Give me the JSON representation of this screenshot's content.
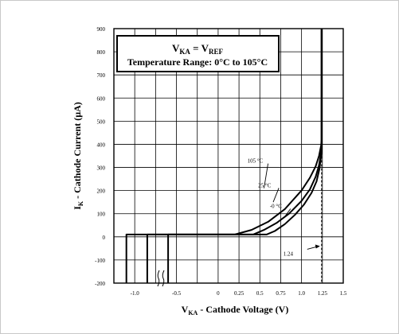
{
  "chart_data": {
    "type": "line",
    "title_line1_main": "V",
    "title_line1_sub": "KA",
    "title_line1_eq": " = V",
    "title_line1_sub2": "REF",
    "title_line2": "Temperature Range: 0°C to 105°C",
    "xlabel_main": "V",
    "xlabel_sub": "KA",
    "xlabel_rest": " - Cathode Voltage (V)",
    "ylabel_main": "I",
    "ylabel_sub": "K",
    "ylabel_rest": " - Cathode Current (µA)",
    "xlim": [
      -1.25,
      1.5
    ],
    "ylim": [
      -200,
      900
    ],
    "grid": true,
    "x_ticks": [
      {
        "v": -1.0,
        "label": "-1.0"
      },
      {
        "v": -0.5,
        "label": "-0.5"
      },
      {
        "v": 0,
        "label": "0"
      },
      {
        "v": 0.25,
        "label": "0.25"
      },
      {
        "v": 0.5,
        "label": "0.5"
      },
      {
        "v": 0.75,
        "label": "0.75"
      },
      {
        "v": 1.0,
        "label": "1.0"
      },
      {
        "v": 1.25,
        "label": "1.25"
      },
      {
        "v": 1.5,
        "label": "1.5"
      }
    ],
    "y_ticks": [
      {
        "v": -200,
        "label": "-200"
      },
      {
        "v": -100,
        "label": "-100"
      },
      {
        "v": 0,
        "label": "0"
      },
      {
        "v": 100,
        "label": "100"
      },
      {
        "v": 200,
        "label": "200"
      },
      {
        "v": 300,
        "label": "300"
      },
      {
        "v": 400,
        "label": "400"
      },
      {
        "v": 500,
        "label": "500"
      },
      {
        "v": 600,
        "label": "600"
      },
      {
        "v": 700,
        "label": "700"
      },
      {
        "v": 800,
        "label": "800"
      },
      {
        "v": 900,
        "label": "900"
      }
    ],
    "series": [
      {
        "name": "105 °C",
        "points": [
          [
            -1.1,
            -200
          ],
          [
            -1.1,
            10
          ],
          [
            0.2,
            10
          ],
          [
            0.4,
            30
          ],
          [
            0.6,
            65
          ],
          [
            0.8,
            120
          ],
          [
            1.0,
            200
          ],
          [
            1.1,
            255
          ],
          [
            1.17,
            305
          ],
          [
            1.21,
            350
          ],
          [
            1.235,
            395
          ],
          [
            1.24,
            420
          ],
          [
            1.24,
            900
          ]
        ]
      },
      {
        "name": "25 °C",
        "points": [
          [
            -0.85,
            -200
          ],
          [
            -0.85,
            10
          ],
          [
            0.42,
            10
          ],
          [
            0.55,
            30
          ],
          [
            0.7,
            60
          ],
          [
            0.85,
            100
          ],
          [
            1.0,
            155
          ],
          [
            1.1,
            205
          ],
          [
            1.17,
            260
          ],
          [
            1.21,
            310
          ],
          [
            1.235,
            365
          ],
          [
            1.24,
            400
          ],
          [
            1.24,
            900
          ]
        ]
      },
      {
        "name": "-0 °C",
        "points": [
          [
            -0.6,
            -200
          ],
          [
            -0.6,
            10
          ],
          [
            0.58,
            10
          ],
          [
            0.68,
            25
          ],
          [
            0.8,
            55
          ],
          [
            0.92,
            95
          ],
          [
            1.03,
            140
          ],
          [
            1.12,
            190
          ],
          [
            1.18,
            240
          ],
          [
            1.215,
            295
          ],
          [
            1.235,
            350
          ],
          [
            1.24,
            390
          ],
          [
            1.24,
            900
          ]
        ]
      }
    ],
    "reference_line": {
      "x": 1.24,
      "label": "1.24"
    },
    "annotations": [
      {
        "text": "105 °C",
        "x": 0.35,
        "y": 320
      },
      {
        "text": "25 °C",
        "x": 0.48,
        "y": 215
      },
      {
        "text": "-0 °C",
        "x": 0.62,
        "y": 125
      }
    ]
  }
}
